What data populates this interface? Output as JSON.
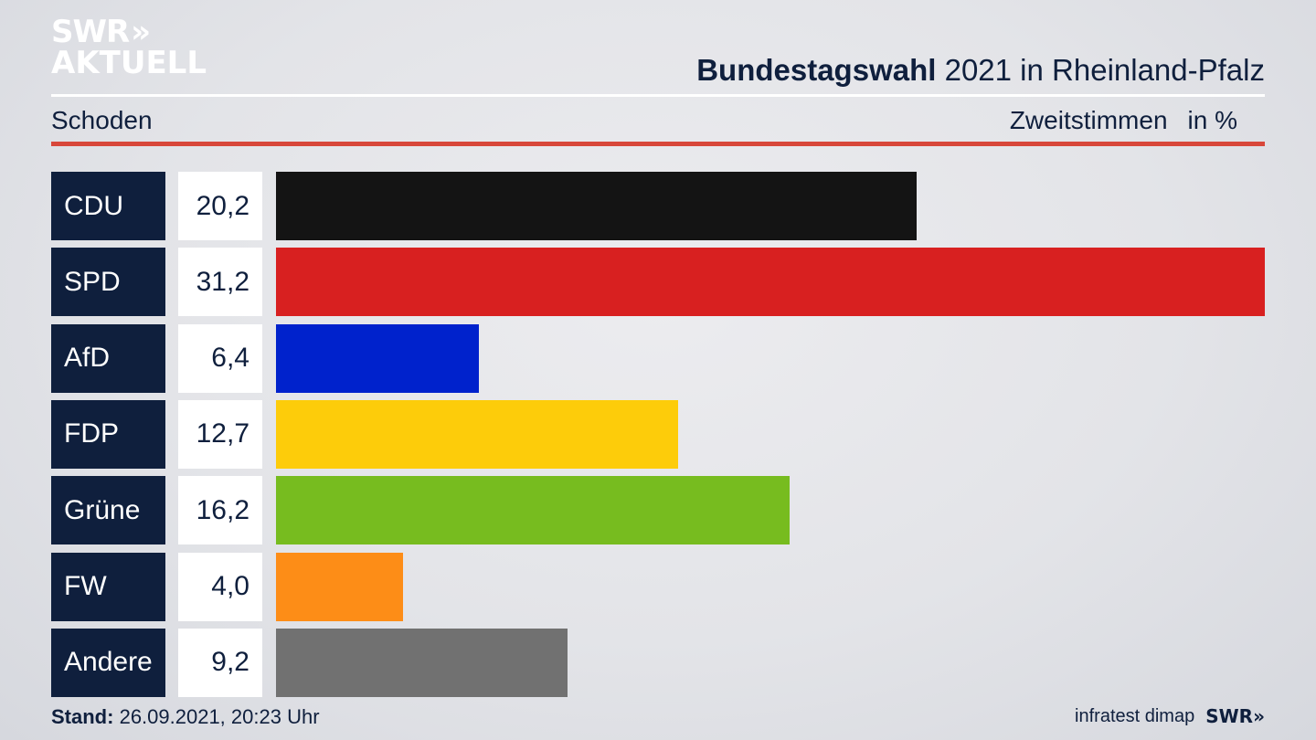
{
  "branding": {
    "logo_line1": "SWR",
    "logo_chevrons": "»",
    "logo_line2": "AKTUELL",
    "footer_logo": "SWR»",
    "source": "infratest dimap"
  },
  "header": {
    "title_bold": "Bundestagswahl",
    "title_rest": "2021 in Rheinland-Pfalz",
    "region": "Schoden",
    "measure": "Zweitstimmen",
    "unit": "in %"
  },
  "footer": {
    "stand_label": "Stand:",
    "stand_value": "26.09.2021, 20:23 Uhr"
  },
  "chart_data": {
    "type": "bar",
    "orientation": "horizontal",
    "categories": [
      "CDU",
      "SPD",
      "AfD",
      "FDP",
      "Grüne",
      "FW",
      "Andere"
    ],
    "values": [
      20.2,
      31.2,
      6.4,
      12.7,
      16.2,
      4.0,
      9.2
    ],
    "value_labels": [
      "20,2",
      "31,2",
      "6,4",
      "12,7",
      "16,2",
      "4,0",
      "9,2"
    ],
    "colors": [
      "#141414",
      "#d82020",
      "#0022cc",
      "#fdcc0a",
      "#77bc1f",
      "#fd8d17",
      "#717171"
    ],
    "xlim": [
      0,
      31.2
    ],
    "title": "Bundestagswahl 2021 in Rheinland-Pfalz",
    "xlabel": "",
    "ylabel": ""
  }
}
